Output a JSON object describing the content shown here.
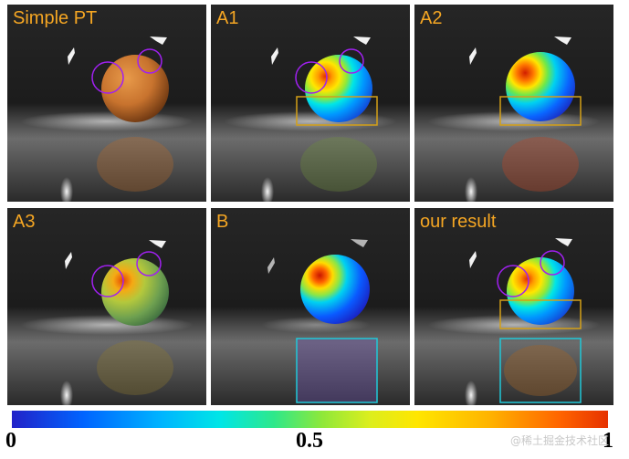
{
  "panels": [
    {
      "label": "Simple PT",
      "sphere": "orange",
      "circles": true,
      "yellow_box": false,
      "cyan_box": false
    },
    {
      "label": "A1",
      "sphere": "heat1",
      "circles": true,
      "yellow_box": true,
      "cyan_box": false
    },
    {
      "label": "A2",
      "sphere": "heat2",
      "circles": false,
      "yellow_box": true,
      "cyan_box": false
    },
    {
      "label": "A3",
      "sphere": "heat3",
      "circles": true,
      "yellow_box": false,
      "cyan_box": false
    },
    {
      "label": "B",
      "sphere": "heatB",
      "circles": false,
      "yellow_box": false,
      "cyan_box": true
    },
    {
      "label": "our result",
      "sphere": "heat1",
      "circles": true,
      "yellow_box": true,
      "cyan_box": true
    }
  ],
  "colorbar": {
    "tick_min": "0",
    "tick_mid": "0.5",
    "tick_max": "1"
  },
  "watermark": "@稀土掘金技术社区",
  "colors": {
    "label": "#f5a623",
    "circle": "#a020f0",
    "yellow_box": "#d4a017",
    "cyan_box": "#20c8d8"
  }
}
